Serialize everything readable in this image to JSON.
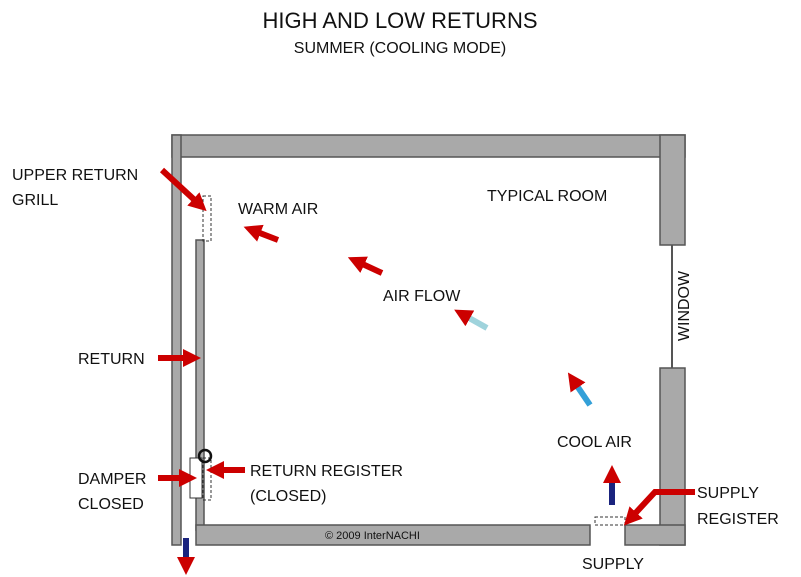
{
  "title": "HIGH AND LOW RETURNS",
  "subtitle": "SUMMER (COOLING MODE)",
  "labels": {
    "upper_return_grill": [
      "UPPER RETURN",
      "GRILL"
    ],
    "warm_air": "WARM AIR",
    "typical_room": "TYPICAL ROOM",
    "air_flow": "AIR FLOW",
    "window": "WINDOW",
    "return": "RETURN",
    "cool_air": "COOL AIR",
    "damper_closed": [
      "DAMPER",
      "CLOSED"
    ],
    "return_register": [
      "RETURN REGISTER",
      "(CLOSED)"
    ],
    "supply_register": [
      "SUPPLY",
      "REGISTER"
    ],
    "supply": "SUPPLY",
    "copyright": "© 2009 InterNACHI"
  }
}
